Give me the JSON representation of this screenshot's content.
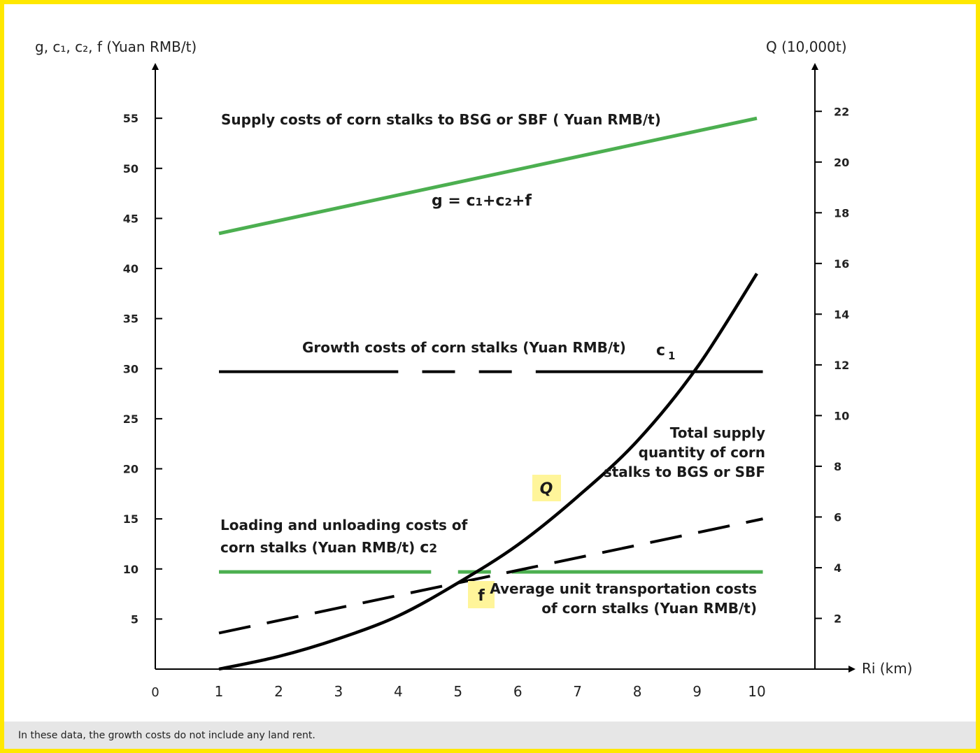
{
  "colors": {
    "border": "#ffe800",
    "green": "#4caf50",
    "black": "#000000",
    "highlight": "#fff59a",
    "footnote_bg": "#e6e6e6"
  },
  "chart_data": {
    "type": "line",
    "left_axis_label": "g, c₁, c₂, f (Yuan RMB/t)",
    "right_axis_label": "Q (10,000t)",
    "x_axis_label": "Ri (km)",
    "x_origin_label": "0",
    "xlim": [
      0,
      11
    ],
    "x_ticks": [
      1,
      2,
      3,
      4,
      5,
      6,
      7,
      8,
      9,
      10
    ],
    "ylim_left": [
      0,
      58
    ],
    "y_left_ticks": [
      5,
      10,
      15,
      20,
      25,
      30,
      35,
      40,
      45,
      50,
      55
    ],
    "ylim_right": [
      0,
      23.2
    ],
    "y_right_ticks": [
      2,
      4,
      6,
      8,
      10,
      12,
      14,
      16,
      18,
      20,
      22
    ],
    "series": [
      {
        "id": "g",
        "axis": "left",
        "style": "green-solid",
        "x": [
          1,
          10
        ],
        "y": [
          43.5,
          55
        ]
      },
      {
        "id": "c1",
        "axis": "left",
        "style": "black-solid-gap",
        "x": [
          1,
          10.1
        ],
        "y": [
          29.7,
          29.7
        ]
      },
      {
        "id": "c2",
        "axis": "left",
        "style": "green-solid-gap",
        "x": [
          1,
          10.1
        ],
        "y": [
          9.7,
          9.7
        ]
      },
      {
        "id": "f",
        "axis": "left",
        "style": "black-dashed",
        "x": [
          1,
          10.1
        ],
        "y": [
          3.6,
          15
        ]
      },
      {
        "id": "Q",
        "axis": "right",
        "style": "black-curve",
        "x": [
          1,
          2,
          3,
          4,
          5,
          6,
          7,
          8,
          9,
          10
        ],
        "y": [
          0,
          0.5,
          1.2,
          2.1,
          3.4,
          4.9,
          6.8,
          9.0,
          11.9,
          15.6
        ]
      }
    ],
    "annotations": {
      "g_title": "Supply costs of corn stalks to BSG or SBF ( Yuan RMB/t)",
      "g_formula_left": "g = ",
      "g_formula_c1": "c",
      "g_formula_c1_sub": "1",
      "g_formula_plus1": "+",
      "g_formula_c2": "c",
      "g_formula_c2_sub": "2",
      "g_formula_rest": "+f",
      "c1_title": "Growth costs of corn stalks (Yuan RMB/t)",
      "c1_label": "c",
      "c1_label_sub": "1",
      "q_title_1": "Total supply",
      "q_title_2": "quantity of corn",
      "q_title_3": "stalks to BGS or SBF",
      "q_label": "Q",
      "c2_title_1": "Loading and unloading costs of",
      "c2_title_2": "corn stalks (Yuan RMB/t)",
      "c2_label": "c",
      "c2_label_sub": "2",
      "f_label": "f",
      "f_title_1": "Average unit transportation costs",
      "f_title_2": "of corn stalks (Yuan RMB/t)"
    }
  },
  "footnote": "In these data, the growth costs do not include any land rent."
}
